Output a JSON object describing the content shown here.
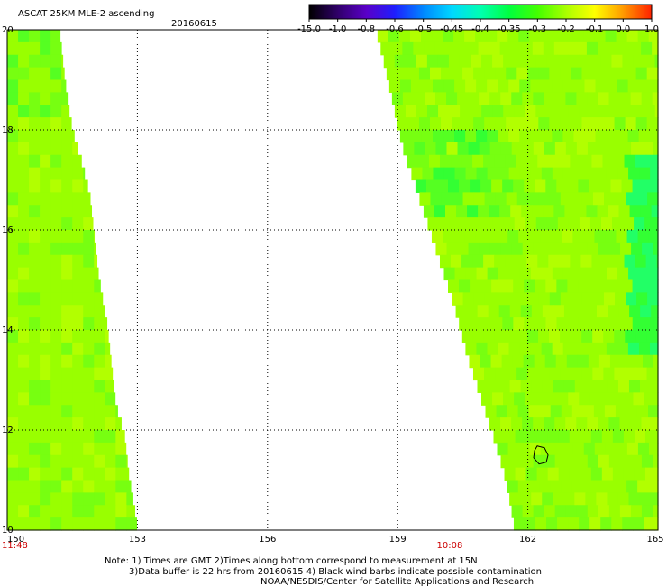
{
  "chart_data": {
    "type": "heatmap",
    "title": "ASCAT 25KM MLE-2 ascending",
    "date": "20160615",
    "xlabel": "",
    "ylabel": "",
    "xlim": [
      150,
      165
    ],
    "ylim": [
      10,
      20
    ],
    "x_ticks": [
      "150",
      "153",
      "156",
      "159",
      "162",
      "165"
    ],
    "y_ticks": [
      "20",
      "18",
      "16",
      "14",
      "12",
      "10"
    ],
    "grid": true,
    "colorbar": {
      "labels": [
        "-15.0",
        "-1.0",
        "-0.8",
        "-0.6",
        "-0.5",
        "-0.45",
        "-0.4",
        "-0.35",
        "-0.3",
        "-0.2",
        "-0.1",
        "0.0",
        "1.0"
      ],
      "colors": [
        "#000000",
        "#30006a",
        "#5a00c8",
        "#1e1eff",
        "#0088ff",
        "#00d8ff",
        "#00ffb0",
        "#00ff40",
        "#44ff00",
        "#aaff00",
        "#ffff00",
        "#ff9900",
        "#ff2000"
      ]
    },
    "swath_times": [
      {
        "label": "11:48",
        "x": 150
      },
      {
        "label": "10:08",
        "x": 160.2
      }
    ],
    "swaths": [
      {
        "name": "west",
        "dominant_value": -0.2,
        "edge_lon": [
          [
            20,
            151.2
          ],
          [
            19.2,
            151.3
          ],
          [
            18.5,
            151.4
          ],
          [
            18,
            151.5
          ],
          [
            17.4,
            151.7
          ],
          [
            16.7,
            151.9
          ],
          [
            15.9,
            152.0
          ],
          [
            15.1,
            152.1
          ],
          [
            14.1,
            152.3
          ],
          [
            13.3,
            152.4
          ],
          [
            12.5,
            152.5
          ],
          [
            11.9,
            152.7
          ],
          [
            11.1,
            152.8
          ],
          [
            10.6,
            152.9
          ],
          [
            10,
            153.0
          ]
        ]
      },
      {
        "name": "east",
        "dominant_value": -0.2,
        "edge_lon": [
          [
            20,
            158.5
          ],
          [
            19.3,
            158.7
          ],
          [
            18.5,
            158.9
          ],
          [
            17.7,
            159.1
          ],
          [
            16.9,
            159.4
          ],
          [
            16.1,
            159.7
          ],
          [
            15.3,
            160.0
          ],
          [
            14.5,
            160.3
          ],
          [
            13.5,
            160.6
          ],
          [
            12.7,
            160.9
          ],
          [
            11.9,
            161.2
          ],
          [
            11.0,
            161.5
          ],
          [
            10,
            161.7
          ]
        ]
      }
    ],
    "contamination_marker": {
      "lon": 162.3,
      "lat": 11.5
    }
  },
  "notes": {
    "line1": "Note: 1) Times are GMT 2)Times along bottom correspond to measurement at 15N",
    "line2": "3)Data buffer is 22 hrs from 20160615 4) Black wind barbs indicate possible contamination",
    "line3": "NOAA/NESDIS/Center for Satellite Applications and Research"
  }
}
